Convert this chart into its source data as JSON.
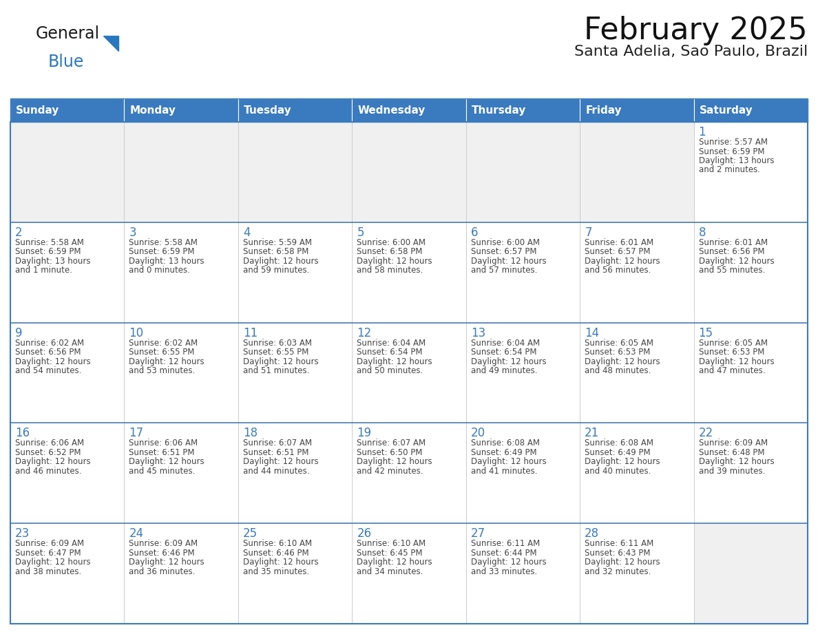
{
  "title": "February 2025",
  "subtitle": "Santa Adelia, Sao Paulo, Brazil",
  "header_color": "#3a7abf",
  "header_text_color": "#ffffff",
  "cell_bg_color": "#ffffff",
  "empty_cell_bg_color": "#f0f0f0",
  "cell_border_color": "#3a7abf",
  "row_border_color": "#4a7ab0",
  "day_number_color": "#3a7abf",
  "cell_text_color": "#444444",
  "title_color": "#111111",
  "subtitle_color": "#222222",
  "days_of_week": [
    "Sunday",
    "Monday",
    "Tuesday",
    "Wednesday",
    "Thursday",
    "Friday",
    "Saturday"
  ],
  "weeks": [
    [
      {
        "day": "",
        "sunrise": "",
        "sunset": "",
        "daylight": ""
      },
      {
        "day": "",
        "sunrise": "",
        "sunset": "",
        "daylight": ""
      },
      {
        "day": "",
        "sunrise": "",
        "sunset": "",
        "daylight": ""
      },
      {
        "day": "",
        "sunrise": "",
        "sunset": "",
        "daylight": ""
      },
      {
        "day": "",
        "sunrise": "",
        "sunset": "",
        "daylight": ""
      },
      {
        "day": "",
        "sunrise": "",
        "sunset": "",
        "daylight": ""
      },
      {
        "day": "1",
        "sunrise": "5:57 AM",
        "sunset": "6:59 PM",
        "daylight": "13 hours\nand 2 minutes."
      }
    ],
    [
      {
        "day": "2",
        "sunrise": "5:58 AM",
        "sunset": "6:59 PM",
        "daylight": "13 hours\nand 1 minute."
      },
      {
        "day": "3",
        "sunrise": "5:58 AM",
        "sunset": "6:59 PM",
        "daylight": "13 hours\nand 0 minutes."
      },
      {
        "day": "4",
        "sunrise": "5:59 AM",
        "sunset": "6:58 PM",
        "daylight": "12 hours\nand 59 minutes."
      },
      {
        "day": "5",
        "sunrise": "6:00 AM",
        "sunset": "6:58 PM",
        "daylight": "12 hours\nand 58 minutes."
      },
      {
        "day": "6",
        "sunrise": "6:00 AM",
        "sunset": "6:57 PM",
        "daylight": "12 hours\nand 57 minutes."
      },
      {
        "day": "7",
        "sunrise": "6:01 AM",
        "sunset": "6:57 PM",
        "daylight": "12 hours\nand 56 minutes."
      },
      {
        "day": "8",
        "sunrise": "6:01 AM",
        "sunset": "6:56 PM",
        "daylight": "12 hours\nand 55 minutes."
      }
    ],
    [
      {
        "day": "9",
        "sunrise": "6:02 AM",
        "sunset": "6:56 PM",
        "daylight": "12 hours\nand 54 minutes."
      },
      {
        "day": "10",
        "sunrise": "6:02 AM",
        "sunset": "6:55 PM",
        "daylight": "12 hours\nand 53 minutes."
      },
      {
        "day": "11",
        "sunrise": "6:03 AM",
        "sunset": "6:55 PM",
        "daylight": "12 hours\nand 51 minutes."
      },
      {
        "day": "12",
        "sunrise": "6:04 AM",
        "sunset": "6:54 PM",
        "daylight": "12 hours\nand 50 minutes."
      },
      {
        "day": "13",
        "sunrise": "6:04 AM",
        "sunset": "6:54 PM",
        "daylight": "12 hours\nand 49 minutes."
      },
      {
        "day": "14",
        "sunrise": "6:05 AM",
        "sunset": "6:53 PM",
        "daylight": "12 hours\nand 48 minutes."
      },
      {
        "day": "15",
        "sunrise": "6:05 AM",
        "sunset": "6:53 PM",
        "daylight": "12 hours\nand 47 minutes."
      }
    ],
    [
      {
        "day": "16",
        "sunrise": "6:06 AM",
        "sunset": "6:52 PM",
        "daylight": "12 hours\nand 46 minutes."
      },
      {
        "day": "17",
        "sunrise": "6:06 AM",
        "sunset": "6:51 PM",
        "daylight": "12 hours\nand 45 minutes."
      },
      {
        "day": "18",
        "sunrise": "6:07 AM",
        "sunset": "6:51 PM",
        "daylight": "12 hours\nand 44 minutes."
      },
      {
        "day": "19",
        "sunrise": "6:07 AM",
        "sunset": "6:50 PM",
        "daylight": "12 hours\nand 42 minutes."
      },
      {
        "day": "20",
        "sunrise": "6:08 AM",
        "sunset": "6:49 PM",
        "daylight": "12 hours\nand 41 minutes."
      },
      {
        "day": "21",
        "sunrise": "6:08 AM",
        "sunset": "6:49 PM",
        "daylight": "12 hours\nand 40 minutes."
      },
      {
        "day": "22",
        "sunrise": "6:09 AM",
        "sunset": "6:48 PM",
        "daylight": "12 hours\nand 39 minutes."
      }
    ],
    [
      {
        "day": "23",
        "sunrise": "6:09 AM",
        "sunset": "6:47 PM",
        "daylight": "12 hours\nand 38 minutes."
      },
      {
        "day": "24",
        "sunrise": "6:09 AM",
        "sunset": "6:46 PM",
        "daylight": "12 hours\nand 36 minutes."
      },
      {
        "day": "25",
        "sunrise": "6:10 AM",
        "sunset": "6:46 PM",
        "daylight": "12 hours\nand 35 minutes."
      },
      {
        "day": "26",
        "sunrise": "6:10 AM",
        "sunset": "6:45 PM",
        "daylight": "12 hours\nand 34 minutes."
      },
      {
        "day": "27",
        "sunrise": "6:11 AM",
        "sunset": "6:44 PM",
        "daylight": "12 hours\nand 33 minutes."
      },
      {
        "day": "28",
        "sunrise": "6:11 AM",
        "sunset": "6:43 PM",
        "daylight": "12 hours\nand 32 minutes."
      },
      {
        "day": "",
        "sunrise": "",
        "sunset": "",
        "daylight": ""
      }
    ]
  ],
  "logo_general_color": "#1a1a1a",
  "logo_blue_color": "#2878c0",
  "logo_triangle_color": "#2878c0",
  "title_fontsize": 32,
  "subtitle_fontsize": 16,
  "header_fontsize": 11,
  "day_number_fontsize": 12,
  "cell_text_fontsize": 8.5
}
